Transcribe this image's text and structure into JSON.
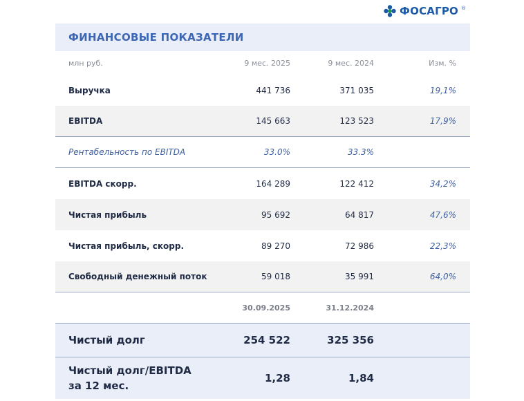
{
  "logo": {
    "text": "ФОСАГРО",
    "mark": "®"
  },
  "title": "ФИНАНСОВЫЕ ПОКАЗАТЕЛИ",
  "header": {
    "unit": "млн руб.",
    "col1": "9 мес. 2025",
    "col2": "9 мес. 2024",
    "col3": "Изм. %"
  },
  "rows": [
    {
      "label": "Выручка",
      "v1": "441 736",
      "v2": "371 035",
      "change": "19,1%"
    },
    {
      "label": "EBITDA",
      "v1": "145 663",
      "v2": "123 523",
      "change": "17,9%"
    },
    {
      "label": "Рентабельность по EBITDA",
      "v1": "33.0%",
      "v2": "33.3%",
      "change": ""
    },
    {
      "label": "EBITDA скорр.",
      "v1": "164 289",
      "v2": "122 412",
      "change": "34,2%"
    },
    {
      "label": "Чистая прибыль",
      "v1": "95 692",
      "v2": "64 817",
      "change": "47,6%"
    },
    {
      "label": "Чистая прибыль, скорр.",
      "v1": "89 270",
      "v2": "72 986",
      "change": "22,3%"
    },
    {
      "label": "Свободный денежный поток",
      "v1": "59 018",
      "v2": "35 991",
      "change": "64,0%"
    }
  ],
  "dates": {
    "d1": "30.09.2025",
    "d2": "31.12.2024"
  },
  "net_debt": {
    "label": "Чистый долг",
    "v1": "254 522",
    "v2": "325 356"
  },
  "ratio": {
    "label": "Чистый долг/EBITDA за 12 мес.",
    "v1": "1,28",
    "v2": "1,84"
  },
  "colors": {
    "accent": "#3d67b3",
    "band": "#e9eef8",
    "logo": "#1d5aa8",
    "logo_leaf": "#1a9a4a"
  }
}
